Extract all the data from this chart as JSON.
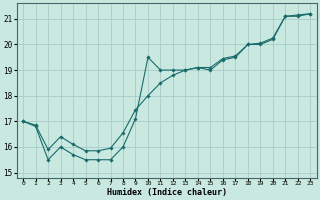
{
  "xlabel": "Humidex (Indice chaleur)",
  "x_ticks": [
    0,
    1,
    2,
    3,
    4,
    5,
    6,
    7,
    8,
    9,
    10,
    11,
    12,
    13,
    14,
    15,
    16,
    17,
    18,
    19,
    20,
    21,
    22,
    23
  ],
  "xlim": [
    -0.5,
    23.5
  ],
  "ylim": [
    14.8,
    21.6
  ],
  "yticks": [
    15,
    16,
    17,
    18,
    19,
    20,
    21
  ],
  "bg_color": "#c8e8e0",
  "grid_color": "#a8cccc",
  "line_color": "#1a6b6b",
  "series1_y": [
    17.0,
    16.8,
    15.5,
    16.0,
    15.7,
    15.5,
    15.5,
    15.5,
    16.0,
    17.1,
    19.5,
    19.0,
    19.0,
    19.0,
    19.1,
    19.0,
    19.4,
    19.5,
    20.0,
    20.0,
    20.2,
    21.1,
    21.1,
    21.2
  ],
  "series2_y": [
    17.0,
    16.85,
    15.9,
    16.4,
    16.1,
    15.85,
    15.85,
    15.95,
    16.55,
    17.45,
    18.0,
    18.5,
    18.8,
    19.0,
    19.1,
    19.1,
    19.45,
    19.55,
    20.0,
    20.05,
    20.25,
    21.1,
    21.15,
    21.2
  ]
}
